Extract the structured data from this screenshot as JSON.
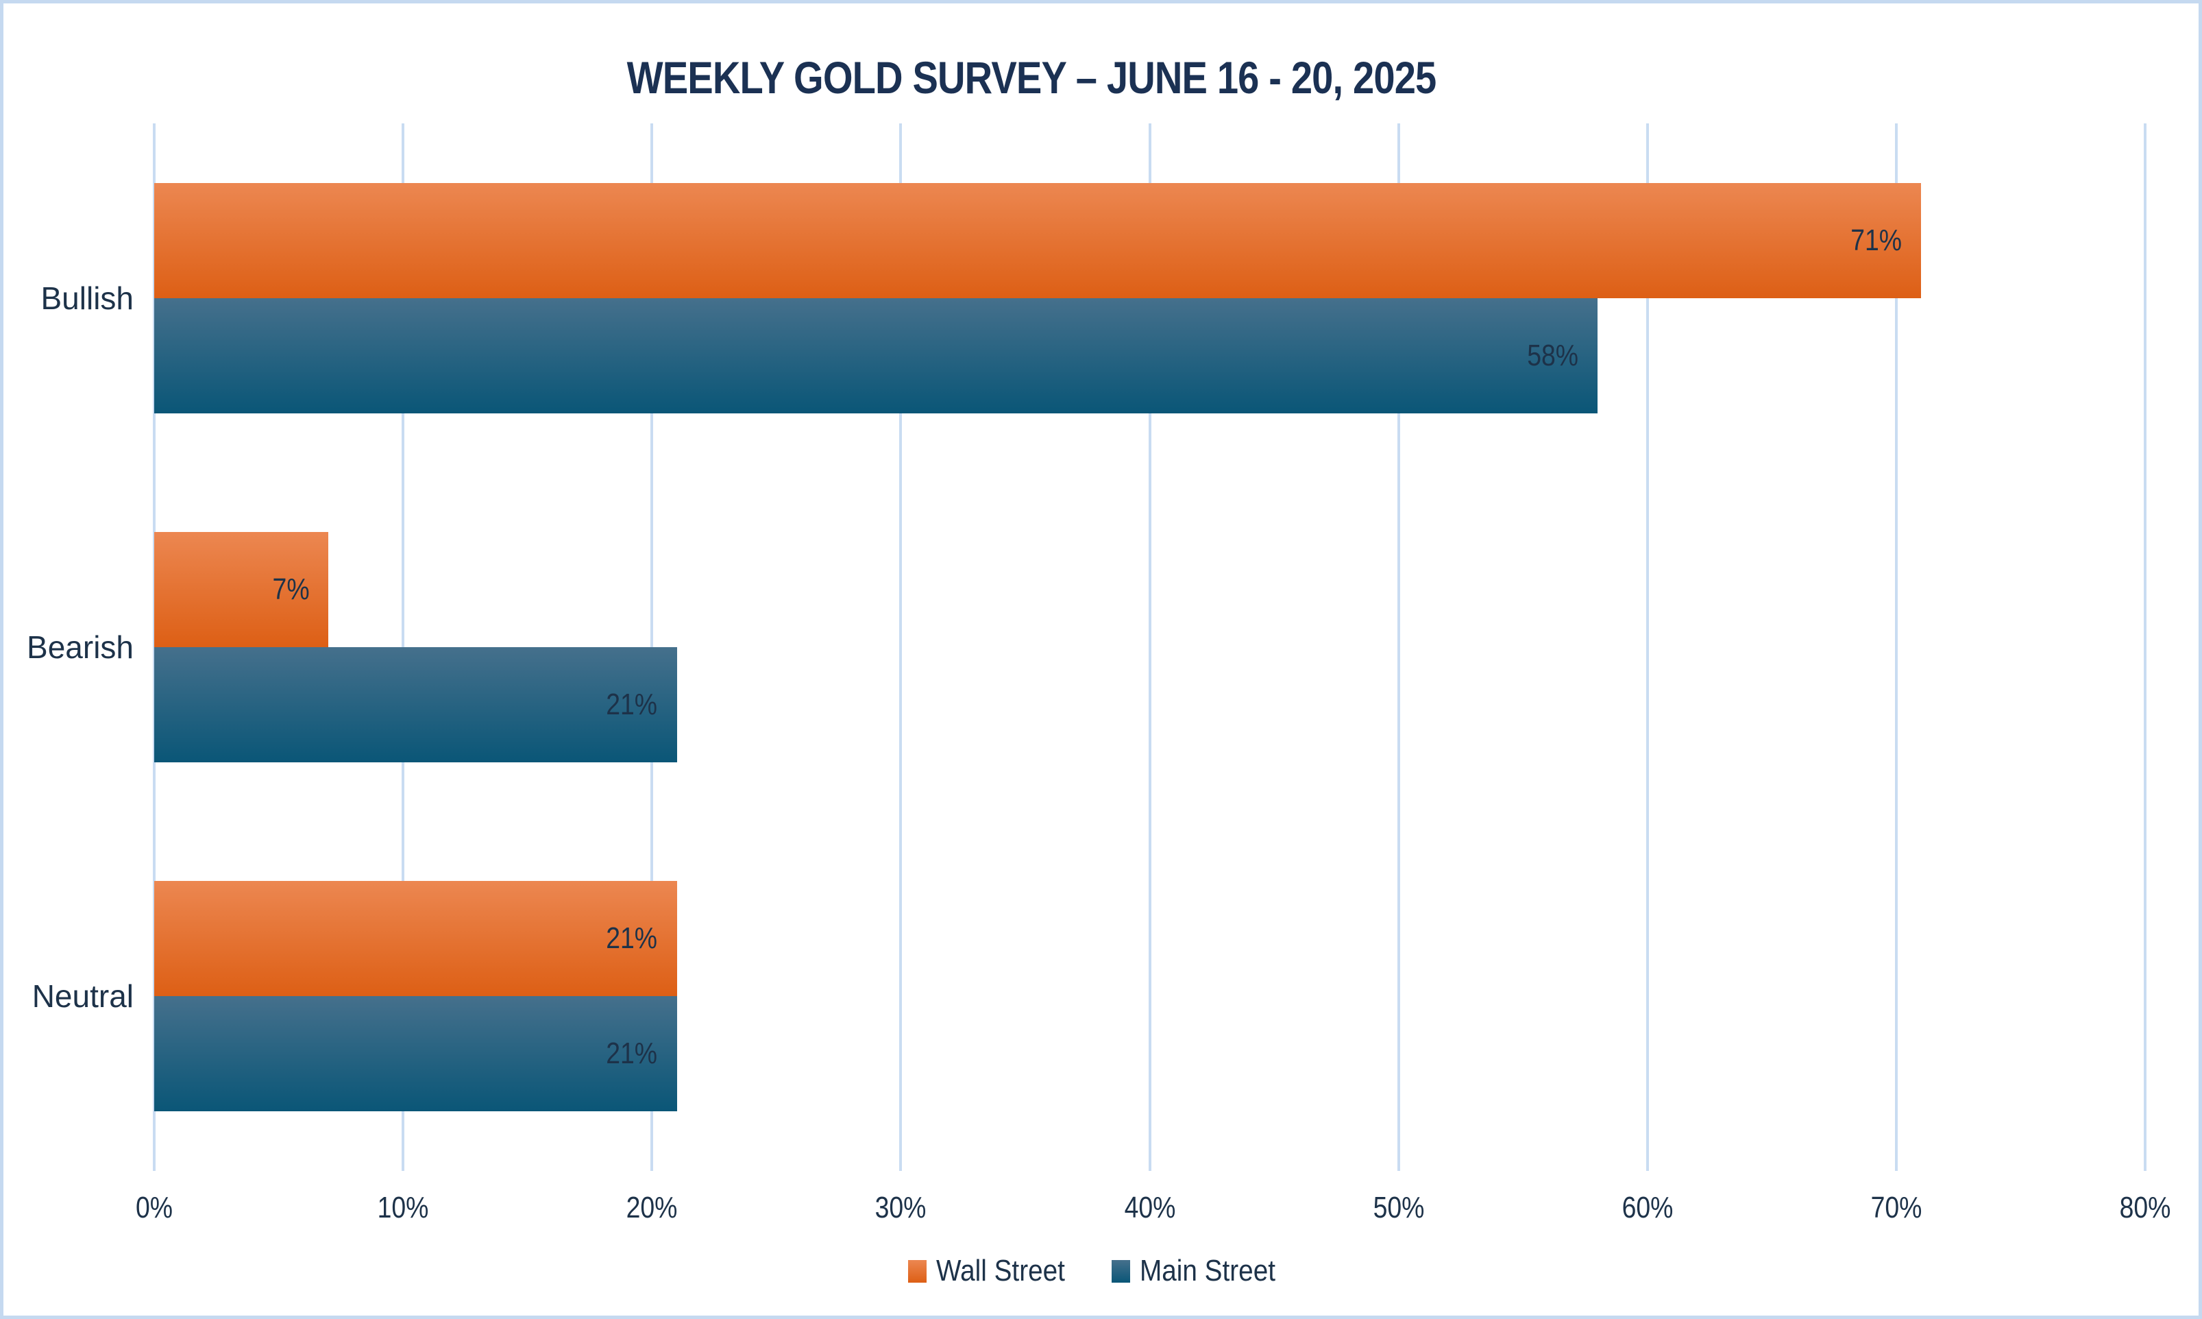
{
  "chart_data": {
    "type": "bar",
    "orientation": "horizontal",
    "title": "WEEKLY GOLD SURVEY – JUNE 16 - 20, 2025",
    "categories": [
      "Bullish",
      "Bearish",
      "Neutral"
    ],
    "series": [
      {
        "name": "Wall Street",
        "values": [
          71,
          7,
          21
        ],
        "value_labels": [
          "71%",
          "7%",
          "21%"
        ],
        "color_top": "#EC8751",
        "color_bottom": "#DD5F15"
      },
      {
        "name": "Main Street",
        "values": [
          58,
          21,
          21
        ],
        "value_labels": [
          "58%",
          "21%",
          "21%"
        ],
        "color_top": "#45708C",
        "color_bottom": "#0A5677"
      }
    ],
    "xlabel": "",
    "ylabel": "",
    "xlim": [
      0,
      80
    ],
    "x_tick_step": 10,
    "x_ticks": [
      "0%",
      "10%",
      "20%",
      "30%",
      "40%",
      "50%",
      "60%",
      "70%",
      "80%"
    ],
    "grid": true,
    "legend_position": "bottom",
    "colors": {
      "text": "#1D3249",
      "title_text": "#1B3153",
      "gridline": "#C9DCF2",
      "frame_border": "#C5D9F0",
      "background": "#FFFFFF"
    }
  }
}
